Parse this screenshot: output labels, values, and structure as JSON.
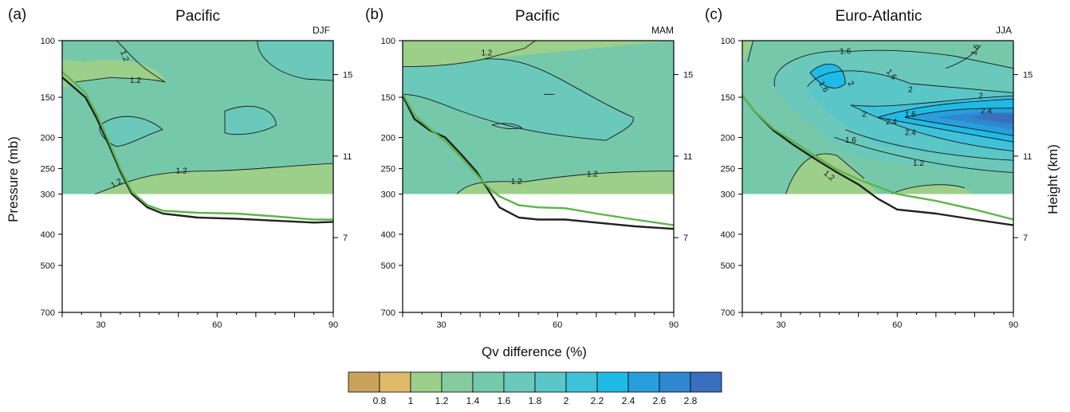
{
  "figure": {
    "ylabel_left": "Pressure (mb)",
    "ylabel_right": "Height (km)",
    "colorbar_title": "Qv difference (%)"
  },
  "colorbar": {
    "colors": [
      "#c9a35c",
      "#e1b96b",
      "#9ccf8a",
      "#86cb9e",
      "#76c8ab",
      "#6ac9ba",
      "#5ac6c8",
      "#3fc2d9",
      "#1fbbe6",
      "#289fdc",
      "#2f87cf",
      "#3a6fbf"
    ],
    "labels": [
      "0.8",
      "1",
      "1.2",
      "1.4",
      "1.6",
      "1.8",
      "2",
      "2.2",
      "2.4",
      "2.6",
      "2.8"
    ]
  },
  "chart_data": [
    {
      "type": "heatmap",
      "panel_label": "(a)",
      "title": "Pacific",
      "season": "DJF",
      "x_ticks": [
        "30",
        "60",
        "90"
      ],
      "y_ticks": [
        "100",
        "150",
        "200",
        "250",
        "300",
        "400",
        "500",
        "700"
      ],
      "height_ticks": [
        "15",
        "11",
        "7"
      ],
      "xlim": [
        20,
        90
      ],
      "ylim_mb": [
        700,
        100
      ],
      "log_pressure_axis": true,
      "shaded_pressure_range_mb": [
        100,
        300
      ],
      "background_level": "1.4",
      "contour_labels": [
        "1.2",
        "1.2",
        "1.2",
        "1.2"
      ],
      "series": [
        {
          "name": "",
          "color": "#222222",
          "x": [
            20,
            26,
            29,
            32,
            35,
            38,
            42,
            46,
            55,
            65,
            75,
            85,
            90
          ],
          "y": [
            130,
            150,
            175,
            210,
            255,
            300,
            330,
            345,
            355,
            358,
            363,
            368,
            366
          ]
        },
        {
          "name": "",
          "color": "#5db54a",
          "x": [
            20,
            26,
            29,
            32,
            35,
            38,
            42,
            46,
            55,
            65,
            75,
            85,
            90
          ],
          "y": [
            125,
            145,
            170,
            205,
            250,
            295,
            325,
            338,
            343,
            345,
            352,
            360,
            360
          ]
        }
      ]
    },
    {
      "type": "heatmap",
      "panel_label": "(b)",
      "title": "Pacific",
      "season": "MAM",
      "x_ticks": [
        "30",
        "60",
        "90"
      ],
      "y_ticks": [
        "100",
        "150",
        "200",
        "250",
        "300",
        "400",
        "500",
        "700"
      ],
      "height_ticks": [
        "15",
        "11",
        "7"
      ],
      "xlim": [
        20,
        90
      ],
      "ylim_mb": [
        700,
        100
      ],
      "log_pressure_axis": true,
      "shaded_pressure_range_mb": [
        100,
        300
      ],
      "background_level": "1.4",
      "contour_labels": [
        "1.2",
        "1.2",
        "1.2"
      ],
      "series": [
        {
          "name": "",
          "color": "#222222",
          "x": [
            20,
            23,
            27,
            31,
            35,
            39,
            42,
            45,
            50,
            55,
            62,
            70,
            80,
            90
          ],
          "y": [
            148,
            175,
            190,
            200,
            225,
            255,
            290,
            330,
            355,
            360,
            360,
            368,
            378,
            385
          ]
        },
        {
          "name": "",
          "color": "#5db54a",
          "x": [
            20,
            23,
            27,
            31,
            35,
            39,
            42,
            45,
            50,
            55,
            62,
            70,
            80,
            90
          ],
          "y": [
            146,
            170,
            188,
            205,
            230,
            260,
            285,
            305,
            325,
            330,
            332,
            345,
            360,
            375
          ]
        }
      ]
    },
    {
      "type": "heatmap",
      "panel_label": "(c)",
      "title": "Euro-Atlantic",
      "season": "JJA",
      "x_ticks": [
        "30",
        "60",
        "90"
      ],
      "y_ticks": [
        "100",
        "150",
        "200",
        "250",
        "300",
        "400",
        "500",
        "700"
      ],
      "height_ticks": [
        "15",
        "11",
        "7"
      ],
      "xlim": [
        20,
        90
      ],
      "ylim_mb": [
        700,
        100
      ],
      "log_pressure_axis": true,
      "shaded_pressure_range_mb": [
        100,
        300
      ],
      "background_level": "1.4",
      "contour_labels": [
        "1.6",
        "1.6",
        "1.6",
        "1.6",
        "2",
        "2",
        "2",
        "2",
        "2.4",
        "2.4",
        "2.4",
        "1.6",
        "1.6",
        "1.2",
        "1.2"
      ],
      "series": [
        {
          "name": "",
          "color": "#222222",
          "x": [
            20,
            23,
            28,
            33,
            38,
            44,
            50,
            55,
            60,
            70,
            80,
            90
          ],
          "y": [
            148,
            165,
            190,
            210,
            230,
            255,
            280,
            310,
            335,
            345,
            360,
            375
          ]
        },
        {
          "name": "",
          "color": "#5db54a",
          "x": [
            20,
            23,
            28,
            33,
            38,
            44,
            50,
            55,
            60,
            70,
            80,
            90
          ],
          "y": [
            148,
            165,
            188,
            205,
            225,
            250,
            270,
            285,
            300,
            315,
            335,
            360
          ]
        }
      ]
    }
  ]
}
